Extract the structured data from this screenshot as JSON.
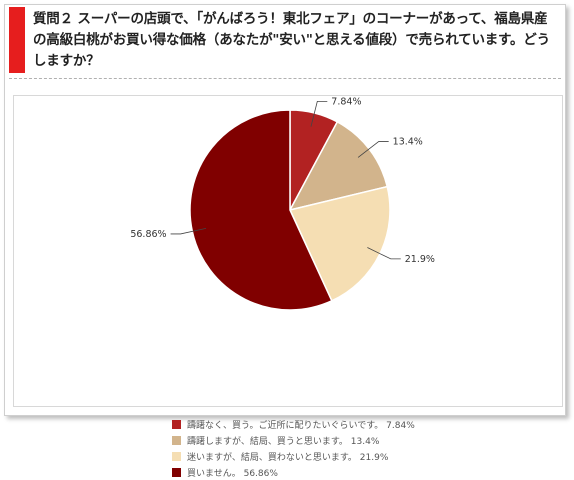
{
  "question": {
    "text": "質問２ スーパーの店頭で、「がんばろう！東北フェア」のコーナーがあって、福島県産の高級白桃がお買い得な価格（あなたが\"安い\"と思える値段）で売られています。どうしますか？"
  },
  "chart_data": {
    "type": "pie",
    "title": "",
    "start_angle_deg": 0,
    "direction": "clockwise",
    "slices": [
      {
        "label": "躊躇なく、買う。ご近所に配りたいぐらいです。",
        "value": 7.84,
        "value_label": "7.84%",
        "color": "#b22222"
      },
      {
        "label": "躊躇しますが、結局、買うと思います。",
        "value": 13.4,
        "value_label": "13.4%",
        "color": "#d2b48c"
      },
      {
        "label": "迷いますが、結局、買わないと思います。",
        "value": 21.9,
        "value_label": "21.9%",
        "color": "#f5deb3"
      },
      {
        "label": "買いません。",
        "value": 56.86,
        "value_label": "56.86%",
        "color": "#800000"
      }
    ],
    "legend": {
      "placement": "bottom",
      "entries": [
        "躊躇なく、買う。ご近所に配りたいぐらいです。 7.84%",
        "躊躇しますが、結局、買うと思います。 13.4%",
        "迷いますが、結局、買わないと思います。 21.9%",
        "買いません。 56.86%"
      ]
    }
  }
}
